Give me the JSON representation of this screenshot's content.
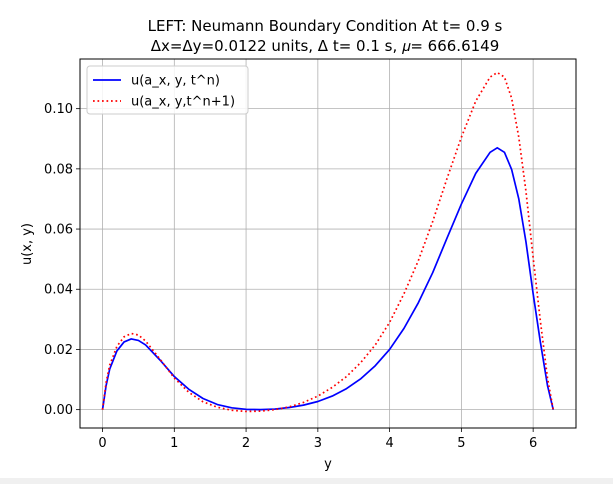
{
  "chart_data": {
    "type": "line",
    "title_line1": "LEFT: Neumann Boundary Condition At t= 0.9 s",
    "title_line2": "Δx=Δy=0.0122 units, Δ t= 0.1 s, 𝜇= 666.6149",
    "xlabel": "y",
    "ylabel": "u(x, y)",
    "xlim": [
      -0.314,
      6.597
    ],
    "ylim": [
      -0.0061,
      0.1165
    ],
    "xticks": [
      0,
      1,
      2,
      3,
      4,
      5,
      6
    ],
    "xtick_labels": [
      "0",
      "1",
      "2",
      "3",
      "4",
      "5",
      "6"
    ],
    "yticks": [
      0.0,
      0.02,
      0.04,
      0.06,
      0.08,
      0.1
    ],
    "ytick_labels": [
      "0.00",
      "0.02",
      "0.04",
      "0.06",
      "0.08",
      "0.10"
    ],
    "grid": true,
    "legend_position": "upper-left",
    "series": [
      {
        "name": "u(a_x, y, t^n)",
        "color": "#0000ff",
        "style": "solid",
        "x": [
          0,
          0.05,
          0.1,
          0.2,
          0.3,
          0.4,
          0.5,
          0.6,
          0.8,
          1.0,
          1.2,
          1.4,
          1.6,
          1.8,
          2.0,
          2.2,
          2.4,
          2.6,
          2.8,
          3.0,
          3.2,
          3.4,
          3.6,
          3.8,
          4.0,
          4.2,
          4.4,
          4.6,
          4.8,
          5.0,
          5.2,
          5.4,
          5.5,
          5.6,
          5.7,
          5.8,
          5.9,
          6.0,
          6.1,
          6.2,
          6.28
        ],
        "y": [
          0.0,
          0.008,
          0.0135,
          0.0195,
          0.0225,
          0.0235,
          0.023,
          0.0215,
          0.0165,
          0.011,
          0.0068,
          0.0037,
          0.0017,
          0.0006,
          0.0001,
          0.0,
          0.0002,
          0.0007,
          0.0015,
          0.0027,
          0.0045,
          0.007,
          0.0103,
          0.0146,
          0.02,
          0.027,
          0.0355,
          0.0455,
          0.057,
          0.0683,
          0.0785,
          0.0855,
          0.087,
          0.0855,
          0.0798,
          0.07,
          0.0557,
          0.0385,
          0.0225,
          0.008,
          0.0
        ]
      },
      {
        "name": "u(a_x, y,t^n+1)",
        "color": "#ff0000",
        "style": "dotted",
        "x": [
          0,
          0.05,
          0.1,
          0.2,
          0.3,
          0.4,
          0.5,
          0.6,
          0.8,
          1.0,
          1.2,
          1.4,
          1.6,
          1.8,
          2.0,
          2.2,
          2.4,
          2.6,
          2.8,
          3.0,
          3.2,
          3.4,
          3.6,
          3.8,
          4.0,
          4.2,
          4.4,
          4.6,
          4.8,
          5.0,
          5.2,
          5.4,
          5.5,
          5.6,
          5.7,
          5.8,
          5.9,
          6.0,
          6.1,
          6.2,
          6.28
        ],
        "y": [
          0.0,
          0.009,
          0.0148,
          0.021,
          0.0242,
          0.0253,
          0.0248,
          0.0228,
          0.0168,
          0.0105,
          0.0058,
          0.0026,
          0.0008,
          -0.0002,
          -0.0006,
          -0.0005,
          0.0,
          0.0009,
          0.0024,
          0.0045,
          0.0074,
          0.011,
          0.0157,
          0.0215,
          0.029,
          0.0385,
          0.0495,
          0.0625,
          0.0768,
          0.0905,
          0.1025,
          0.1105,
          0.112,
          0.1105,
          0.1035,
          0.0905,
          0.0725,
          0.0505,
          0.0295,
          0.0105,
          0.0
        ]
      }
    ]
  }
}
